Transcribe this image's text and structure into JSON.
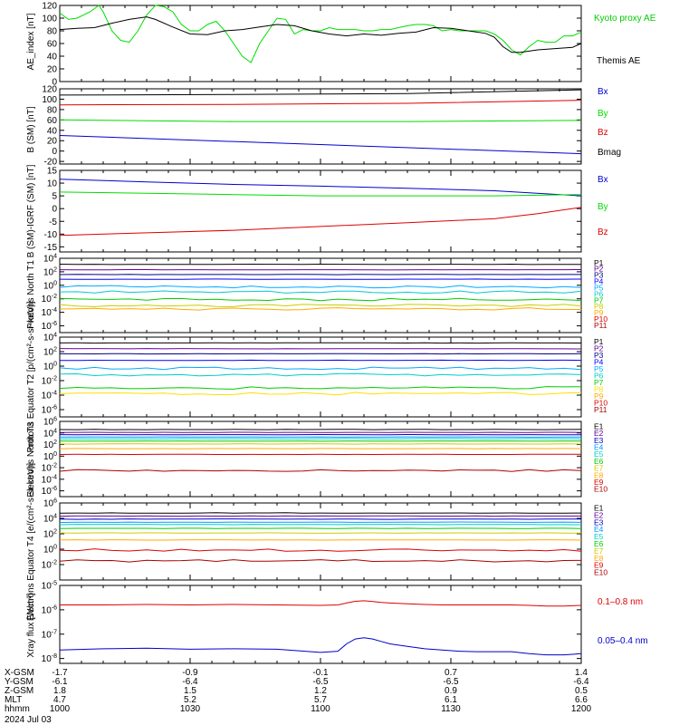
{
  "chart_data": [
    {
      "type": "line",
      "ylabel": "AE_index [nT]",
      "ylim": [
        0,
        120
      ],
      "yticks": [
        "0",
        "20",
        "40",
        "60",
        "80",
        "100",
        "120"
      ],
      "series": [
        {
          "name": "Kyoto proxy AE",
          "color": "#00dd00",
          "x": [
            0,
            2,
            4,
            7,
            9,
            10,
            12,
            14,
            16,
            18,
            20,
            22,
            24,
            26,
            28,
            30,
            32,
            34,
            36,
            38,
            40,
            42,
            44,
            46,
            48,
            50,
            52,
            54,
            56,
            58,
            60,
            62,
            64,
            66,
            68,
            70,
            72,
            74,
            76,
            78,
            80,
            82,
            84,
            86,
            88,
            90,
            92,
            94,
            96,
            98,
            100,
            102,
            104,
            106,
            108,
            110,
            112,
            114,
            116,
            118,
            120
          ],
          "y": [
            108,
            98,
            100,
            110,
            120,
            110,
            80,
            65,
            62,
            80,
            105,
            120,
            118,
            110,
            90,
            80,
            80,
            90,
            95,
            80,
            60,
            40,
            30,
            60,
            80,
            100,
            98,
            75,
            82,
            80,
            80,
            85,
            82,
            82,
            82,
            80,
            80,
            82,
            82,
            85,
            88,
            90,
            90,
            88,
            80,
            82,
            80,
            80,
            80,
            80,
            75,
            65,
            50,
            42,
            55,
            65,
            62,
            62,
            72,
            72,
            78
          ]
        },
        {
          "name": "Themis AE",
          "color": "#000000",
          "x": [
            0,
            4,
            8,
            12,
            16,
            20,
            22,
            26,
            30,
            34,
            38,
            42,
            46,
            50,
            54,
            58,
            62,
            66,
            70,
            74,
            78,
            82,
            86,
            90,
            94,
            98,
            100,
            102,
            104,
            106,
            110,
            114,
            118,
            120
          ],
          "y": [
            82,
            84,
            85,
            92,
            98,
            102,
            98,
            86,
            75,
            74,
            80,
            82,
            86,
            90,
            88,
            80,
            75,
            72,
            75,
            73,
            76,
            78,
            85,
            84,
            80,
            76,
            70,
            55,
            46,
            46,
            50,
            52,
            54,
            60
          ]
        }
      ]
    },
    {
      "type": "line",
      "ylabel": "B (SM) [nT]",
      "ylim": [
        -25,
        120
      ],
      "yticks": [
        "-20",
        "0",
        "20",
        "40",
        "60",
        "80",
        "100",
        "120"
      ],
      "series": [
        {
          "name": "Bx",
          "color": "#0000cc",
          "x": [
            0,
            120
          ],
          "y": [
            30,
            -5
          ]
        },
        {
          "name": "By",
          "color": "#00dd00",
          "x": [
            0,
            40,
            80,
            120
          ],
          "y": [
            60,
            57,
            57,
            59
          ]
        },
        {
          "name": "Bz",
          "color": "#dd0000",
          "x": [
            0,
            40,
            80,
            120
          ],
          "y": [
            89,
            90,
            92,
            98
          ]
        },
        {
          "name": "Bmag",
          "color": "#000000",
          "x": [
            0,
            40,
            80,
            120
          ],
          "y": [
            108,
            109,
            111,
            118
          ]
        }
      ]
    },
    {
      "type": "line",
      "ylabel": "B (SM)-IGRF (SM) [nT]",
      "ylim": [
        -17,
        15
      ],
      "yticks": [
        "-15",
        "-10",
        "-5",
        "0",
        "5",
        "10",
        "15"
      ],
      "series": [
        {
          "name": "Bx",
          "color": "#0000cc",
          "x": [
            0,
            20,
            40,
            60,
            80,
            100,
            120
          ],
          "y": [
            11.5,
            10.5,
            9.5,
            8.8,
            8,
            7,
            5
          ]
        },
        {
          "name": "By",
          "color": "#00dd00",
          "x": [
            0,
            20,
            40,
            60,
            80,
            100,
            120
          ],
          "y": [
            6.5,
            6,
            5.5,
            5,
            5,
            5,
            5.5
          ]
        },
        {
          "name": "Bz",
          "color": "#dd0000",
          "x": [
            0,
            20,
            40,
            60,
            80,
            100,
            110,
            120
          ],
          "y": [
            -10.5,
            -9.5,
            -8.5,
            -7,
            -5.5,
            -4,
            -2,
            0.5
          ]
        }
      ]
    },
    {
      "type": "line",
      "log": true,
      "ylabel": "Protons North T1",
      "ylim": [
        -7,
        4
      ],
      "yticks": [
        "10^4",
        "10^2",
        "10^0",
        "10^-2",
        "10^-4",
        "10^-6"
      ],
      "channels": [
        {
          "name": "P1",
          "color": "#000000",
          "level": 3.1
        },
        {
          "name": "P2",
          "color": "#660099",
          "level": 2.3
        },
        {
          "name": "P3",
          "color": "#000088",
          "level": 1.6
        },
        {
          "name": "P4",
          "color": "#0000ff",
          "level": 0.9
        },
        {
          "name": "P5",
          "color": "#00aaff",
          "level": -0.2
        },
        {
          "name": "P6",
          "color": "#00cccc",
          "level": -1.0
        },
        {
          "name": "P7",
          "color": "#00cc00",
          "level": -2.1
        },
        {
          "name": "P8",
          "color": "#cccc00",
          "level": -3.0
        },
        {
          "name": "P9",
          "color": "#ffaa00",
          "level": -3.5
        },
        {
          "name": "P10",
          "color": "#dd0000",
          "level": null
        },
        {
          "name": "P11",
          "color": "#aa0000",
          "level": null
        }
      ]
    },
    {
      "type": "line",
      "log": true,
      "ylabel": "Protons Equator T2 [p/(cm^2-s-sr-keV)]",
      "ylim": [
        -7,
        4
      ],
      "yticks": [
        "10^4",
        "10^2",
        "10^0",
        "10^-2",
        "10^-4",
        "10^-6"
      ],
      "channels": [
        {
          "name": "P1",
          "color": "#000000",
          "level": 3.2
        },
        {
          "name": "P2",
          "color": "#660099",
          "level": 2.4
        },
        {
          "name": "P3",
          "color": "#000088",
          "level": 1.7
        },
        {
          "name": "P4",
          "color": "#0000ff",
          "level": 0.8
        },
        {
          "name": "P5",
          "color": "#00aaff",
          "level": -0.3
        },
        {
          "name": "P6",
          "color": "#00cccc",
          "level": -1.2
        },
        {
          "name": "P7",
          "color": "#00cc00",
          "level": -3.0
        },
        {
          "name": "P8",
          "color": "#ffdd00",
          "level": -3.8
        },
        {
          "name": "P9",
          "color": "#ffaa00",
          "level": null
        },
        {
          "name": "P10",
          "color": "#dd0000",
          "level": null
        },
        {
          "name": "P11",
          "color": "#aa0000",
          "level": null
        }
      ]
    },
    {
      "type": "line",
      "log": true,
      "ylabel": "Electrons North T3",
      "ylim": [
        -7,
        6
      ],
      "yticks": [
        "10^6",
        "10^4",
        "10^2",
        "10^0",
        "10^-2",
        "10^-4",
        "10^-6"
      ],
      "channels": [
        {
          "name": "E1",
          "color": "#000000",
          "level": 4.6
        },
        {
          "name": "E2",
          "color": "#660099",
          "level": 4.1
        },
        {
          "name": "E3",
          "color": "#0000cc",
          "level": 3.7
        },
        {
          "name": "E4",
          "color": "#0099ff",
          "level": 3.3
        },
        {
          "name": "E5",
          "color": "#00cccc",
          "level": 3.0
        },
        {
          "name": "E6",
          "color": "#00cc00",
          "level": 2.6
        },
        {
          "name": "E7",
          "color": "#cccc00",
          "level": 2.1
        },
        {
          "name": "E8",
          "color": "#ffaa00",
          "level": 1.3
        },
        {
          "name": "E9",
          "color": "#dd0000",
          "level": 0.3
        },
        {
          "name": "E10",
          "color": "#aa0000",
          "level": -2.5
        }
      ]
    },
    {
      "type": "line",
      "log": true,
      "ylabel": "Electrons Equator T4 [e/(cm^2-s-sr-keV)]",
      "ylim": [
        -4,
        6
      ],
      "yticks": [
        "10^6",
        "10^4",
        "10^2",
        "10^0",
        "10^-2"
      ],
      "channels": [
        {
          "name": "E1",
          "color": "#000000",
          "level": 4.7
        },
        {
          "name": "E2",
          "color": "#660099",
          "level": 4.3
        },
        {
          "name": "E3",
          "color": "#0000cc",
          "level": 3.9
        },
        {
          "name": "E4",
          "color": "#0099ff",
          "level": 3.5
        },
        {
          "name": "E5",
          "color": "#00cccc",
          "level": 3.2
        },
        {
          "name": "E6",
          "color": "#00cc00",
          "level": 2.7
        },
        {
          "name": "E7",
          "color": "#cccc00",
          "level": 2.1
        },
        {
          "name": "E8",
          "color": "#ffaa00",
          "level": 1.2
        },
        {
          "name": "E9",
          "color": "#dd0000",
          "level": -0.1
        },
        {
          "name": "E10",
          "color": "#aa0000",
          "level": -1.5
        }
      ]
    },
    {
      "type": "line",
      "log": true,
      "ylabel": "Xray flux [W/m^2]",
      "ylim": [
        -8.2,
        -5
      ],
      "yticks": [
        "10^-5",
        "10^-6",
        "10^-7",
        "10^-8"
      ],
      "series": [
        {
          "name": "0.1–0.8 nm",
          "color": "#dd0000",
          "x": [
            0,
            10,
            20,
            30,
            40,
            50,
            60,
            64,
            66,
            68,
            70,
            72,
            74,
            76,
            80,
            84,
            88,
            92,
            96,
            100,
            104,
            108,
            112,
            116,
            120
          ],
          "y": [
            -5.8,
            -5.8,
            -5.78,
            -5.8,
            -5.78,
            -5.8,
            -5.82,
            -5.8,
            -5.72,
            -5.65,
            -5.63,
            -5.66,
            -5.7,
            -5.72,
            -5.75,
            -5.78,
            -5.8,
            -5.8,
            -5.8,
            -5.8,
            -5.8,
            -5.82,
            -5.85,
            -5.85,
            -5.82
          ]
        },
        {
          "name": "0.05–0.4 nm",
          "color": "#0000cc",
          "x": [
            0,
            10,
            20,
            30,
            40,
            50,
            60,
            64,
            66,
            68,
            70,
            72,
            74,
            76,
            80,
            84,
            88,
            92,
            96,
            100,
            104,
            108,
            112,
            116,
            120
          ],
          "y": [
            -7.65,
            -7.6,
            -7.58,
            -7.62,
            -7.6,
            -7.62,
            -7.75,
            -7.7,
            -7.4,
            -7.2,
            -7.15,
            -7.2,
            -7.3,
            -7.4,
            -7.5,
            -7.6,
            -7.65,
            -7.7,
            -7.72,
            -7.72,
            -7.72,
            -7.8,
            -7.85,
            -7.85,
            -7.8
          ]
        }
      ]
    }
  ],
  "legends": {
    "ae": {
      "kyoto": "Kyoto proxy AE",
      "themis": "Themis AE"
    },
    "xray": {
      "long": "0.1–0.8 nm",
      "short": "0.05–0.4 nm"
    }
  },
  "ylabels": {
    "ae": "AE_index [nT]",
    "bsm": "B (SM) [nT]",
    "bigrf": "B (SM)-IGRF (SM) [nT]",
    "pn": "Protons North T1",
    "pe": "Protons Equator T2 [p/(cm²-s-sr-keV)]",
    "en": "Electrons North T3",
    "ee": "Electrons Equator T4 [e/(cm²-s-sr-keV)]",
    "xr": "Xray flux [W/m²]"
  },
  "ephemeris": {
    "rows": [
      {
        "label": "X-GSM",
        "values": [
          "-1.7",
          "-0.9",
          "-0.1",
          "0.7",
          "1.4"
        ]
      },
      {
        "label": "Y-GSM",
        "values": [
          "-6.1",
          "-6.4",
          "-6.5",
          "-6.5",
          "-6.4"
        ]
      },
      {
        "label": "Z-GSM",
        "values": [
          "1.8",
          "1.5",
          "1.2",
          "0.9",
          "0.5"
        ]
      },
      {
        "label": "MLT",
        "values": [
          "4.7",
          "5.2",
          "5.7",
          "6.1",
          "6.6"
        ]
      },
      {
        "label": "hhmm",
        "values": [
          "1000",
          "1030",
          "1100",
          "1130",
          "1200"
        ]
      }
    ],
    "date": "2024 Jul 03"
  }
}
